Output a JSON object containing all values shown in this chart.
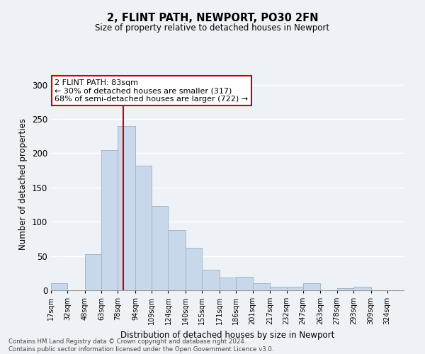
{
  "title": "2, FLINT PATH, NEWPORT, PO30 2FN",
  "subtitle": "Size of property relative to detached houses in Newport",
  "xlabel": "Distribution of detached houses by size in Newport",
  "ylabel": "Number of detached properties",
  "bar_color": "#c8d8ea",
  "bar_edge_color": "#a0b8cc",
  "vline_x": 83,
  "vline_color": "#cc0000",
  "categories": [
    "17sqm",
    "32sqm",
    "48sqm",
    "63sqm",
    "78sqm",
    "94sqm",
    "109sqm",
    "124sqm",
    "140sqm",
    "155sqm",
    "171sqm",
    "186sqm",
    "201sqm",
    "217sqm",
    "232sqm",
    "247sqm",
    "263sqm",
    "278sqm",
    "293sqm",
    "309sqm",
    "324sqm"
  ],
  "bin_edges": [
    17,
    32,
    48,
    63,
    78,
    94,
    109,
    124,
    140,
    155,
    171,
    186,
    201,
    217,
    232,
    247,
    263,
    278,
    293,
    309,
    324,
    339
  ],
  "values": [
    10,
    0,
    53,
    205,
    240,
    182,
    123,
    88,
    62,
    30,
    19,
    20,
    10,
    5,
    5,
    10,
    0,
    3,
    5,
    0,
    0
  ],
  "ylim": [
    0,
    310
  ],
  "yticks": [
    0,
    50,
    100,
    150,
    200,
    250,
    300
  ],
  "annotation_line1": "2 FLINT PATH: 83sqm",
  "annotation_line2": "← 30% of detached houses are smaller (317)",
  "annotation_line3": "68% of semi-detached houses are larger (722) →",
  "footer_line1": "Contains HM Land Registry data © Crown copyright and database right 2024.",
  "footer_line2": "Contains public sector information licensed under the Open Government Licence v3.0.",
  "background_color": "#eef2f7",
  "grid_color": "#ffffff"
}
